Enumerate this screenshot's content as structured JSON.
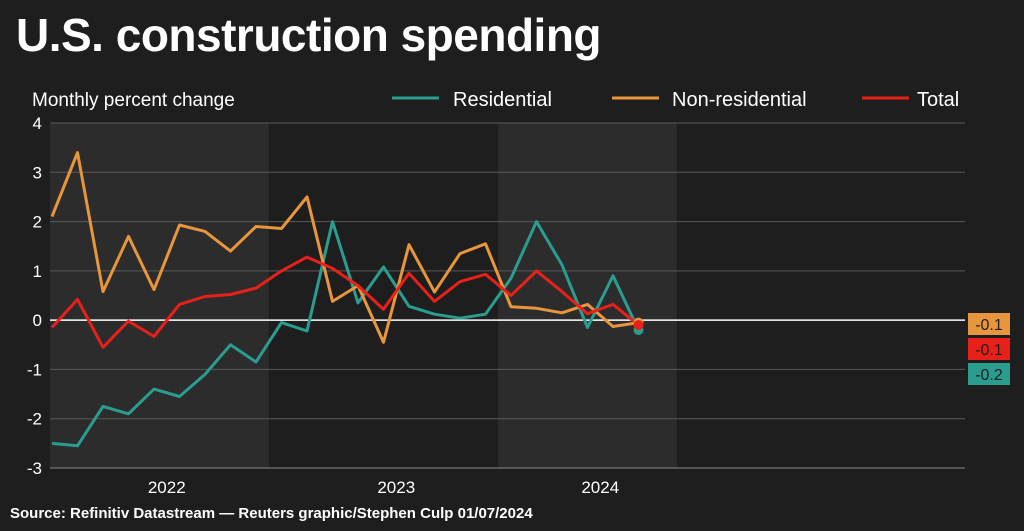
{
  "title": "U.S. construction spending",
  "source": "Source: Refinitiv Datastream — Reuters graphic/Stephen Culp 01/07/2024",
  "chart_data": {
    "type": "line",
    "ylabel": "Monthly percent change",
    "ylim": [
      -3,
      4
    ],
    "yticks": [
      4,
      3,
      2,
      1,
      0,
      -1,
      -2,
      -3
    ],
    "grid": true,
    "legend": "top-right",
    "year_labels": [
      {
        "label": "2022",
        "at": 4.5
      },
      {
        "label": "2023",
        "at": 13.5
      },
      {
        "label": "2024",
        "at": 21.5
      }
    ],
    "shaded_periods": [
      [
        -0.5,
        8.5
      ],
      [
        17.5,
        24.5
      ]
    ],
    "series": [
      {
        "name": "Residential",
        "color": "#2a9d8f",
        "values": [
          -2.5,
          -2.55,
          -1.75,
          -1.9,
          -1.4,
          -1.55,
          -1.1,
          -0.5,
          -0.85,
          -0.05,
          -0.22,
          2.0,
          0.35,
          1.08,
          0.28,
          0.12,
          0.04,
          0.12,
          0.85,
          2.0,
          1.12,
          -0.15,
          0.9,
          -0.2
        ],
        "end_label": "-0.2"
      },
      {
        "name": "Non-residential",
        "color": "#e8963d",
        "values": [
          2.1,
          3.4,
          0.58,
          1.7,
          0.62,
          1.93,
          1.8,
          1.4,
          1.9,
          1.86,
          2.5,
          0.38,
          0.7,
          -0.45,
          1.53,
          0.57,
          1.35,
          1.55,
          0.27,
          0.24,
          0.15,
          0.32,
          -0.13,
          -0.05
        ],
        "end_label": "-0.1"
      },
      {
        "name": "Total",
        "color": "#e8201a",
        "values": [
          -0.15,
          0.42,
          -0.55,
          -0.02,
          -0.33,
          0.32,
          0.48,
          0.52,
          0.65,
          1.0,
          1.28,
          1.05,
          0.7,
          0.22,
          0.95,
          0.38,
          0.78,
          0.93,
          0.5,
          1.0,
          0.58,
          0.13,
          0.32,
          -0.1
        ],
        "end_label": "-0.1"
      }
    ]
  }
}
